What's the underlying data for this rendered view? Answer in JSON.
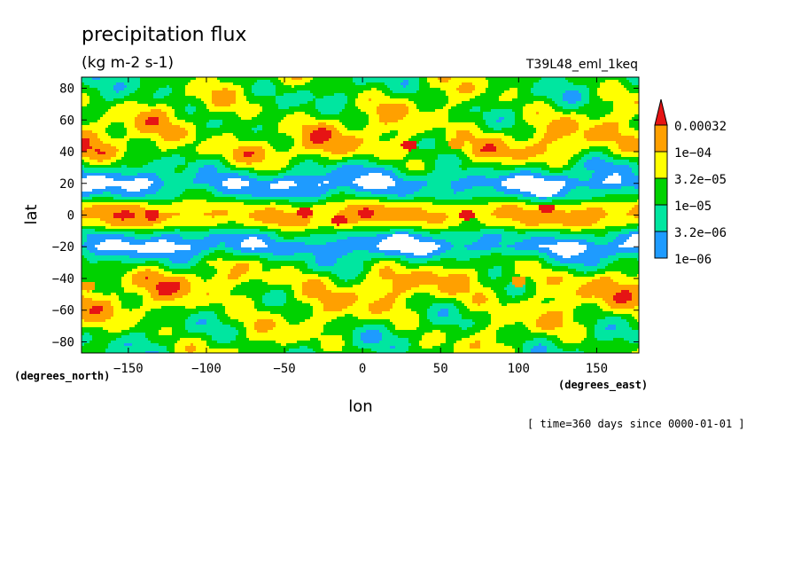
{
  "chart_data": {
    "type": "heatmap",
    "title": "precipitation flux",
    "units": "(kg m-2 s-1)",
    "dataset": "T39L48_eml_1keq",
    "xlabel": "lon",
    "ylabel": "lat",
    "x_units": "(degrees_east)",
    "y_units": "(degrees_north)",
    "time_note": "[ time=360 days since 0000-01-01 ]",
    "xlim": [
      -180,
      177
    ],
    "ylim": [
      -87,
      87
    ],
    "x_ticks": [
      -150,
      -100,
      -50,
      0,
      50,
      100,
      150
    ],
    "y_ticks": [
      80,
      60,
      40,
      20,
      0,
      -20,
      -40,
      -60,
      -80
    ],
    "colorbar": {
      "levels": [
        "1e-06",
        "3.2e-06",
        "1e-05",
        "3.2e-05",
        "1e-04",
        "0.00032"
      ],
      "colors": [
        "#1e9bff",
        "#00e6a0",
        "#00d200",
        "#ffff00",
        "#ffa000",
        "#e61414"
      ],
      "below_color": "#ffffff"
    },
    "lat_profile_log10": {
      "lat": [
        -87,
        -75,
        -62,
        -50,
        -40,
        -30,
        -20,
        -12,
        -6,
        0,
        6,
        12,
        20,
        30,
        40,
        50,
        62,
        75,
        87
      ],
      "value": [
        -4.75,
        -4.7,
        -4.5,
        -4.25,
        -4.2,
        -4.85,
        -6.0,
        -5.3,
        -4.2,
        -3.85,
        -4.2,
        -5.3,
        -6.0,
        -5.0,
        -4.2,
        -4.25,
        -4.5,
        -4.7,
        -4.75
      ]
    },
    "highlights": [
      {
        "lon": -135,
        "lat": 0,
        "value": "0.00032"
      },
      {
        "lon": -37,
        "lat": 2,
        "value": "0.00032"
      },
      {
        "lon": -15,
        "lat": -3,
        "value": "0.00032"
      },
      {
        "lon": 2,
        "lat": 1,
        "value": "0.00032"
      },
      {
        "lon": 67,
        "lat": 0,
        "value": "0.00032"
      },
      {
        "lon": 118,
        "lat": 4,
        "value": "0.00032"
      },
      {
        "lon": 30,
        "lat": 44,
        "value": "0.00032"
      },
      {
        "lon": -176,
        "lat": -45,
        "value": "1e-04"
      },
      {
        "lon": 60,
        "lat": 45,
        "value": "1e-04"
      },
      {
        "lon": 100,
        "lat": -42,
        "value": "1e-04"
      }
    ]
  }
}
